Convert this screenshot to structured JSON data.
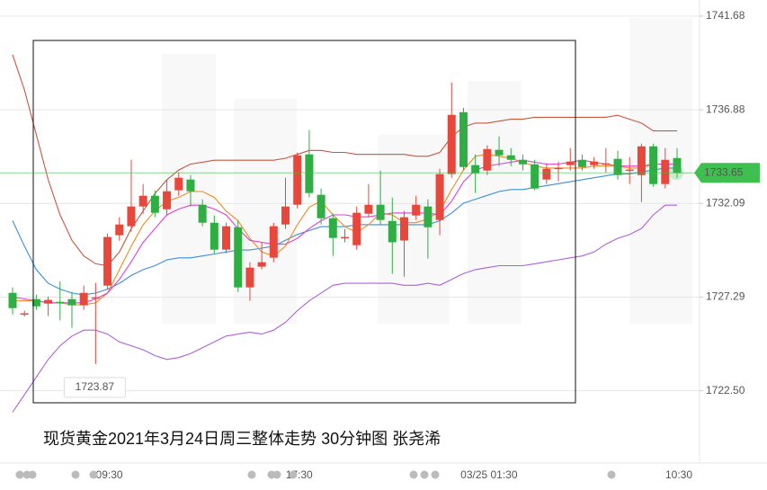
{
  "chart_data": {
    "type": "candlestick",
    "title": "现货黄金2021年3月24日周三整体走势  30分钟图 张尧浠",
    "categories": [
      null,
      null,
      null,
      null,
      null,
      null,
      null,
      null,
      "09:30",
      null,
      null,
      null,
      null,
      null,
      null,
      null,
      null,
      null,
      null,
      null,
      null,
      null,
      null,
      null,
      "17:30",
      null,
      null,
      null,
      null,
      null,
      null,
      null,
      null,
      null,
      null,
      null,
      null,
      null,
      null,
      null,
      "03/25 01:30",
      null,
      null,
      null,
      null,
      null,
      null,
      null,
      null,
      null,
      null,
      null,
      null,
      null,
      null,
      null,
      "10:30"
    ],
    "open": [
      1727.51,
      1726.46,
      1727.19,
      1726.96,
      1727.05,
      1727.19,
      1726.87,
      1727.23,
      1727.88,
      1730.46,
      1730.92,
      1731.93,
      1732.48,
      1731.79,
      1732.76,
      1733.31,
      1732.02,
      1731.1,
      1729.72,
      1730.87,
      1727.79,
      1728.85,
      1729.31,
      1731.01,
      1732.02,
      1734.6,
      1732.53,
      1731.33,
      1730.32,
      1729.95,
      1731.56,
      1732.02,
      1731.19,
      1730.19,
      1731.47,
      1731.93,
      1731.24,
      1733.59,
      1736.76,
      1734.05,
      1733.77,
      1734.83,
      1734.55,
      1734.32,
      1734.09,
      1733.31,
      1733.86,
      1734.05,
      1734.32,
      1734.05,
      1734.09,
      1734.37,
      1733.77,
      1733.54,
      1735.01,
      1733.08,
      1734.41
    ],
    "high": [
      1727.79,
      1726.6,
      1727.42,
      1727.33,
      1728.1,
      1727.56,
      1727.88,
      1728.02,
      1730.55,
      1731.38,
      1734.32,
      1733.08,
      1732.76,
      1733.31,
      1733.68,
      1733.54,
      1732.3,
      1731.47,
      1731.1,
      1731.24,
      1729.08,
      1730.1,
      1731.1,
      1733.4,
      1734.69,
      1735.84,
      1732.85,
      1731.56,
      1730.78,
      1731.93,
      1733.08,
      1733.77,
      1732.39,
      1731.7,
      1732.48,
      1732.3,
      1733.86,
      1738.28,
      1736.99,
      1734.6,
      1735.06,
      1735.52,
      1734.92,
      1734.6,
      1734.32,
      1734.14,
      1734.23,
      1734.92,
      1734.6,
      1734.46,
      1734.92,
      1734.78,
      1734.46,
      1735.15,
      1735.15,
      1734.92,
      1734.92
    ],
    "low": [
      1726.41,
      1726.3,
      1726.64,
      1726.32,
      1726.1,
      1725.72,
      1726.64,
      1723.87,
      1727.7,
      1730.18,
      1730.64,
      1731.56,
      1731.38,
      1731.47,
      1732.48,
      1731.93,
      1730.92,
      1729.54,
      1729.54,
      1727.56,
      1727.1,
      1728.71,
      1729.08,
      1730.78,
      1731.84,
      1732.39,
      1731.01,
      1729.4,
      1730.1,
      1729.72,
      1731.38,
      1731.01,
      1728.48,
      1728.34,
      1731.24,
      1729.26,
      1730.46,
      1733.4,
      1733.77,
      1732.62,
      1733.54,
      1734.0,
      1734.0,
      1733.77,
      1732.76,
      1733.08,
      1733.22,
      1733.77,
      1733.77,
      1733.86,
      1733.68,
      1733.31,
      1733.08,
      1732.16,
      1732.94,
      1732.85,
      1733.4
    ],
    "close": [
      1726.73,
      1726.46,
      1726.82,
      1727.15,
      1727.0,
      1726.87,
      1727.51,
      1727.28,
      1730.37,
      1731.01,
      1731.93,
      1732.48,
      1731.61,
      1732.71,
      1733.4,
      1732.71,
      1731.1,
      1729.72,
      1730.92,
      1727.79,
      1728.8,
      1729.08,
      1730.92,
      1731.93,
      1734.55,
      1732.62,
      1731.33,
      1730.32,
      1730.37,
      1731.61,
      1732.02,
      1731.24,
      1730.1,
      1731.38,
      1732.02,
      1730.87,
      1733.59,
      1736.62,
      1733.95,
      1733.63,
      1734.87,
      1734.55,
      1734.32,
      1734.09,
      1732.85,
      1733.86,
      1733.91,
      1734.23,
      1733.95,
      1734.23,
      1734.14,
      1733.54,
      1733.82,
      1735.01,
      1733.08,
      1734.32,
      1733.65
    ],
    "up_color": "#e8473b",
    "down_color": "#2fae44",
    "lines": [
      {
        "color": "#c9563f",
        "values": [
          1739.7,
          1737.9,
          1735.6,
          1733.3,
          1731.5,
          1730.2,
          1729.4,
          1729.0,
          1728.9,
          1729.6,
          1730.8,
          1731.7,
          1732.6,
          1733.3,
          1733.8,
          1734.1,
          1734.2,
          1734.3,
          1734.3,
          1734.3,
          1734.3,
          1734.3,
          1734.3,
          1734.4,
          1734.6,
          1734.8,
          1734.8,
          1734.7,
          1734.7,
          1734.6,
          1734.6,
          1734.6,
          1734.6,
          1734.6,
          1734.5,
          1734.5,
          1734.7,
          1735.5,
          1736.0,
          1736.2,
          1736.2,
          1736.3,
          1736.4,
          1736.4,
          1736.5,
          1736.5,
          1736.5,
          1736.5,
          1736.5,
          1736.5,
          1736.5,
          1736.6,
          1736.4,
          1736.2,
          1735.8,
          1735.8,
          1735.8
        ]
      },
      {
        "color": "#3a8fd6",
        "values": [
          1731.2,
          1729.9,
          1728.7,
          1728.0,
          1727.7,
          1727.5,
          1727.4,
          1727.5,
          1727.7,
          1728.0,
          1728.4,
          1728.7,
          1728.9,
          1729.2,
          1729.3,
          1729.3,
          1729.4,
          1729.5,
          1729.6,
          1729.7,
          1729.7,
          1729.8,
          1729.9,
          1730.2,
          1730.5,
          1730.7,
          1730.9,
          1730.9,
          1730.9,
          1731.0,
          1731.0,
          1731.0,
          1731.0,
          1731.0,
          1731.0,
          1731.0,
          1731.2,
          1731.6,
          1732.1,
          1732.3,
          1732.5,
          1732.7,
          1732.8,
          1732.8,
          1732.9,
          1733.0,
          1733.1,
          1733.2,
          1733.3,
          1733.4,
          1733.5,
          1733.6,
          1733.6,
          1733.7,
          1733.8,
          1733.9,
          1733.9
        ]
      },
      {
        "color": "#b05fd8",
        "values": [
          1721.4,
          1722.3,
          1723.2,
          1724.1,
          1724.8,
          1725.3,
          1725.6,
          1725.6,
          1725.4,
          1725.0,
          1724.8,
          1724.6,
          1724.3,
          1724.1,
          1724.2,
          1724.4,
          1724.7,
          1725.0,
          1725.3,
          1725.4,
          1725.5,
          1725.4,
          1725.6,
          1726.0,
          1726.6,
          1727.1,
          1727.5,
          1727.9,
          1728.0,
          1728.0,
          1728.0,
          1728.0,
          1728.0,
          1727.9,
          1727.9,
          1728.0,
          1727.9,
          1728.2,
          1728.5,
          1728.7,
          1728.8,
          1728.9,
          1728.9,
          1728.9,
          1729.0,
          1729.1,
          1729.2,
          1729.3,
          1729.4,
          1729.6,
          1730.0,
          1730.3,
          1730.5,
          1730.8,
          1731.5,
          1732.0,
          1732.0
        ]
      },
      {
        "color": "#f08a24",
        "values": [
          1727.1,
          1727.1,
          1727.1,
          1727.0,
          1727.0,
          1726.9,
          1726.9,
          1727.0,
          1727.5,
          1728.7,
          1729.9,
          1731.0,
          1731.7,
          1732.2,
          1732.4,
          1732.7,
          1732.7,
          1732.4,
          1731.7,
          1731.2,
          1730.3,
          1729.6,
          1729.4,
          1729.9,
          1731.0,
          1731.9,
          1732.2,
          1731.5,
          1730.9,
          1730.6,
          1731.0,
          1731.6,
          1731.5,
          1731.1,
          1731.1,
          1731.3,
          1731.7,
          1732.8,
          1733.8,
          1734.5,
          1734.6,
          1734.5,
          1734.4,
          1734.2,
          1734.0,
          1733.9,
          1733.9,
          1733.9,
          1733.9,
          1734.0,
          1734.0,
          1734.0,
          1733.9,
          1733.9,
          1734.1,
          1734.1,
          1734.1
        ]
      },
      {
        "color": "#e23fd6",
        "values": [
          1727.3,
          1727.2,
          1727.1,
          1727.0,
          1727.0,
          1727.0,
          1727.0,
          1727.2,
          1727.5,
          1728.2,
          1729.1,
          1730.1,
          1730.8,
          1731.5,
          1731.8,
          1732.0,
          1732.0,
          1731.8,
          1731.5,
          1730.8,
          1730.2,
          1730.1,
          1730.0,
          1730.0,
          1730.3,
          1730.8,
          1731.2,
          1731.5,
          1731.5,
          1731.4,
          1731.4,
          1731.5,
          1731.6,
          1731.6,
          1731.6,
          1731.6,
          1731.5,
          1732.2,
          1733.2,
          1733.8,
          1734.0,
          1734.1,
          1734.2,
          1734.3,
          1734.2,
          1734.1,
          1734.1,
          1734.2,
          1734.3,
          1734.2,
          1734.1,
          1734.0,
          1734.0,
          1734.0,
          1734.1,
          1734.1,
          1734.1
        ]
      }
    ],
    "ylim": [
      1718.8,
      1742.5
    ],
    "yticks": [
      1741.68,
      1736.88,
      1732.09,
      1727.29,
      {
        "value": 1722.5,
        "label": "1722.50"
      }
    ],
    "grid": true,
    "price_line_color": "#3fbf4f"
  }
}
